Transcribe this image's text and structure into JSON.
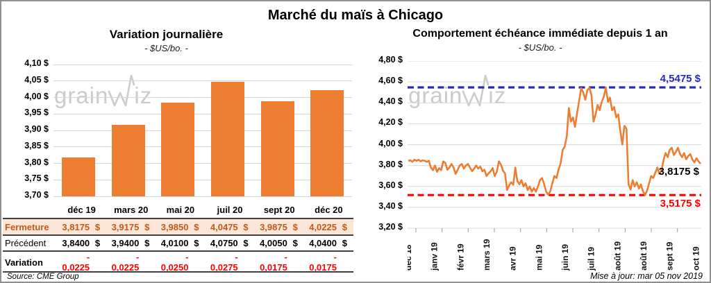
{
  "main_title": "Marché du maïs à Chicago",
  "watermark": {
    "part1": "grain",
    "part2": "iz"
  },
  "footer": {
    "source": "Source: CME Group",
    "updated": "Mise à jour: mar 05 nov 2019"
  },
  "colors": {
    "accent_orange": "#ED7D31",
    "high_blue": "#2a2ab5",
    "low_red": "#ff0000",
    "gridline": "#d9d9d9",
    "table_highlight_bg": "#FBE5D6",
    "table_highlight_text": "#bf5a19"
  },
  "chart_data": [
    {
      "type": "bar",
      "title": "Variation journalière",
      "subtitle": "- $US/bo. -",
      "categories": [
        "déc 19",
        "mars 20",
        "mai 20",
        "juil 20",
        "sept 20",
        "déc 20"
      ],
      "values": [
        3.8175,
        3.9175,
        3.985,
        4.0475,
        3.9875,
        4.0225
      ],
      "ylim": [
        3.7,
        4.1
      ],
      "y_ticks": [
        "4,10 $",
        "4,05 $",
        "4,00 $",
        "3,95 $",
        "3,90 $",
        "3,85 $",
        "3,80 $",
        "3,75 $",
        "3,70 $"
      ],
      "grid": true,
      "bar_color": "#ED7D31"
    },
    {
      "type": "line",
      "title": "Comportement échéance immédiate depuis 1 an",
      "subtitle": "- $US/bo. -",
      "ylim": [
        3.2,
        4.8
      ],
      "y_ticks": [
        "4,80 $",
        "4,60 $",
        "4,40 $",
        "4,20 $",
        "4,00 $",
        "3,80 $",
        "3,60 $",
        "3,40 $",
        "3,20 $"
      ],
      "x_ticks": [
        "déc 18",
        "janv 19",
        "févr 19",
        "mars 19",
        "avr 19",
        "mai 19",
        "juin 19",
        "juil 19",
        "août 19",
        "août 19",
        "sept 19",
        "oct 19"
      ],
      "grid": true,
      "line_color": "#ED7D31",
      "high_ref": {
        "value": 4.5475,
        "label": "4,5475 $",
        "color": "#2a2ab5"
      },
      "low_ref": {
        "value": 3.5175,
        "label": "3,5175 $",
        "color": "#ff0000"
      },
      "last_value_label": "3,8175 $",
      "values": [
        3.845,
        3.85,
        3.835,
        3.855,
        3.845,
        3.855,
        3.84,
        3.85,
        3.845,
        3.835,
        3.845,
        3.78,
        3.755,
        3.8,
        3.74,
        3.775,
        3.755,
        3.84,
        3.825,
        3.76,
        3.78,
        3.815,
        3.78,
        3.72,
        3.76,
        3.8,
        3.815,
        3.77,
        3.8,
        3.815,
        3.78,
        3.745,
        3.77,
        3.8,
        3.77,
        3.79,
        3.745,
        3.76,
        3.7,
        3.725,
        3.745,
        3.775,
        3.7,
        3.74,
        3.84,
        3.81,
        3.75,
        3.725,
        3.565,
        3.61,
        3.64,
        3.615,
        3.78,
        3.65,
        3.62,
        3.66,
        3.6,
        3.63,
        3.565,
        3.6,
        3.55,
        3.585,
        3.55,
        3.6,
        3.66,
        3.68,
        3.62,
        3.55,
        3.52,
        3.555,
        3.63,
        3.7,
        3.68,
        3.76,
        3.82,
        3.95,
        3.98,
        4.08,
        4.35,
        4.22,
        4.26,
        4.17,
        4.3,
        4.42,
        4.54,
        4.5,
        4.43,
        4.52,
        4.545,
        4.47,
        4.22,
        4.29,
        4.38,
        4.33,
        4.41,
        4.46,
        4.5475,
        4.41,
        4.45,
        4.33,
        4.36,
        4.26,
        4.29,
        4.13,
        4.0,
        4.18,
        4.15,
        3.62,
        3.57,
        3.66,
        3.6,
        3.64,
        3.58,
        3.62,
        3.555,
        3.5175,
        3.56,
        3.63,
        3.7,
        3.68,
        3.73,
        3.78,
        3.72,
        3.75,
        3.85,
        3.92,
        3.88,
        3.95,
        3.97,
        3.9,
        3.93,
        3.97,
        3.91,
        3.88,
        3.92,
        3.86,
        3.89,
        3.91,
        3.86,
        3.83,
        3.87,
        3.84,
        3.8175
      ]
    }
  ],
  "table": {
    "header": [
      "déc 19",
      "mars 20",
      "mai 20",
      "juil 20",
      "sept 20",
      "déc 20"
    ],
    "rows": [
      {
        "id": "fermeture",
        "label": "Fermeture",
        "currency": "$",
        "values": [
          "3,8175",
          "3,9175",
          "3,9850",
          "4,0475",
          "3,9875",
          "4,0225"
        ]
      },
      {
        "id": "precedent",
        "label": "Précédent",
        "currency": "$",
        "values": [
          "3,8400",
          "3,9400",
          "4,0100",
          "4,0750",
          "4,0050",
          "4,0400"
        ]
      },
      {
        "id": "variation",
        "label": "Variation",
        "currency": "",
        "values": [
          "- 0,0225",
          "- 0,0225",
          "- 0,0250",
          "- 0,0275",
          "- 0,0175",
          "- 0,0175"
        ]
      }
    ]
  }
}
